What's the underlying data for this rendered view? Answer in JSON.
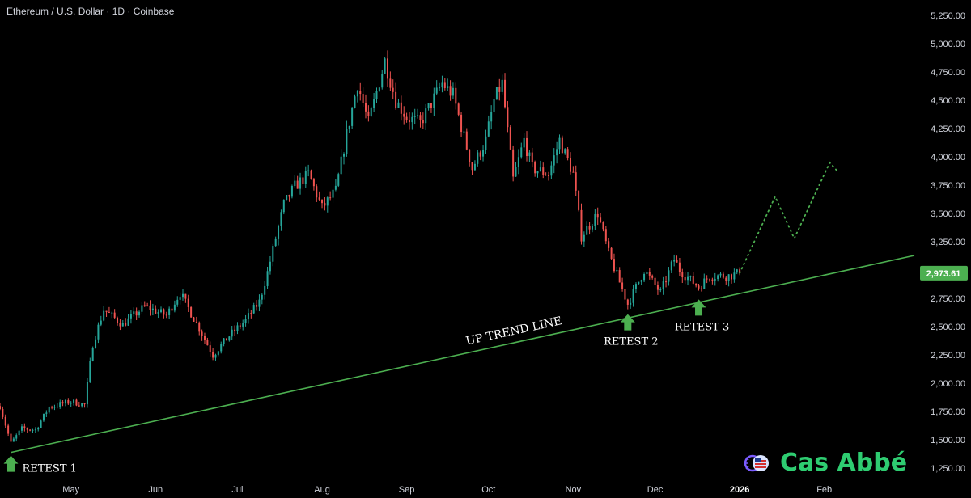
{
  "header": {
    "title": "Ethereum / U.S. Dollar · 1D · Coinbase"
  },
  "brand": {
    "name": "Cas Abbé",
    "accent": "#2ecc71"
  },
  "colors": {
    "up": "#26a69a",
    "down": "#ef5350",
    "trend": "#4caf50",
    "arrow": "#4caf50",
    "price_tag": "#4caf50"
  },
  "chart_data": {
    "type": "candlestick",
    "y_axis": {
      "ticks": [
        "1,250.00",
        "1,500.00",
        "1,750.00",
        "2,000.00",
        "2,250.00",
        "2,500.00",
        "2,750.00",
        "3,000.00",
        "3,250.00",
        "3,500.00",
        "3,750.00",
        "4,000.00",
        "4,250.00",
        "4,500.00",
        "4,750.00",
        "5,000.00",
        "5,250.00"
      ],
      "tick_values": [
        1250,
        1500,
        1750,
        2000,
        2250,
        2500,
        2750,
        3000,
        3250,
        3500,
        3750,
        4000,
        4250,
        4500,
        4750,
        5000,
        5250
      ],
      "ylim": [
        1130,
        5330
      ]
    },
    "x_axis": {
      "ticks": [
        "May",
        "Jun",
        "Jul",
        "Aug",
        "Sep",
        "Oct",
        "Nov",
        "Dec",
        "2026",
        "Feb"
      ],
      "tick_dates": [
        "2025-05-01",
        "2025-06-01",
        "2025-07-01",
        "2025-08-01",
        "2025-09-01",
        "2025-10-01",
        "2025-11-01",
        "2025-12-01",
        "2026-01-01",
        "2026-02-01"
      ],
      "bold_ticks": [
        "2026"
      ],
      "xlim": [
        "2025-04-05",
        "2026-03-06"
      ]
    },
    "current_price": {
      "value": 2973.61,
      "label": "2,973.61"
    },
    "price_path": [
      [
        "2025-04-05",
        1800
      ],
      [
        "2025-04-09",
        1470
      ],
      [
        "2025-04-13",
        1600
      ],
      [
        "2025-04-18",
        1590
      ],
      [
        "2025-04-23",
        1790
      ],
      [
        "2025-05-01",
        1840
      ],
      [
        "2025-05-06",
        1810
      ],
      [
        "2025-05-09",
        2350
      ],
      [
        "2025-05-13",
        2650
      ],
      [
        "2025-05-20",
        2520
      ],
      [
        "2025-05-28",
        2680
      ],
      [
        "2025-06-05",
        2600
      ],
      [
        "2025-06-10",
        2800
      ],
      [
        "2025-06-16",
        2530
      ],
      [
        "2025-06-22",
        2250
      ],
      [
        "2025-06-28",
        2420
      ],
      [
        "2025-07-04",
        2560
      ],
      [
        "2025-07-09",
        2720
      ],
      [
        "2025-07-12",
        2980
      ],
      [
        "2025-07-18",
        3580
      ],
      [
        "2025-07-22",
        3740
      ],
      [
        "2025-07-27",
        3850
      ],
      [
        "2025-08-01",
        3550
      ],
      [
        "2025-08-06",
        3700
      ],
      [
        "2025-08-10",
        4200
      ],
      [
        "2025-08-14",
        4650
      ],
      [
        "2025-08-18",
        4300
      ],
      [
        "2025-08-24",
        4850
      ],
      [
        "2025-08-28",
        4500
      ],
      [
        "2025-09-01",
        4350
      ],
      [
        "2025-09-06",
        4300
      ],
      [
        "2025-09-14",
        4650
      ],
      [
        "2025-09-18",
        4550
      ],
      [
        "2025-09-25",
        3900
      ],
      [
        "2025-09-30",
        4150
      ],
      [
        "2025-10-03",
        4500
      ],
      [
        "2025-10-06",
        4650
      ],
      [
        "2025-10-10",
        3800
      ],
      [
        "2025-10-14",
        4150
      ],
      [
        "2025-10-17",
        3900
      ],
      [
        "2025-10-23",
        3850
      ],
      [
        "2025-10-27",
        4150
      ],
      [
        "2025-11-01",
        3850
      ],
      [
        "2025-11-04",
        3300
      ],
      [
        "2025-11-10",
        3500
      ],
      [
        "2025-11-14",
        3150
      ],
      [
        "2025-11-21",
        2700
      ],
      [
        "2025-11-27",
        3000
      ],
      [
        "2025-12-03",
        2800
      ],
      [
        "2025-12-08",
        3100
      ],
      [
        "2025-12-10",
        3000
      ],
      [
        "2025-12-17",
        2850
      ],
      [
        "2025-12-21",
        2950
      ],
      [
        "2025-12-28",
        2950
      ],
      [
        "2026-01-01",
        2973.61
      ]
    ],
    "trend_line": {
      "label": "UP TREND LINE",
      "points": [
        [
          "2025-04-09",
          1390
        ],
        [
          "2026-03-06",
          3130
        ]
      ]
    },
    "projection": {
      "style": "dotted",
      "points": [
        [
          "2026-01-01",
          2973.61
        ],
        [
          "2026-01-14",
          3650
        ],
        [
          "2026-01-21",
          3280
        ],
        [
          "2026-02-03",
          3950
        ],
        [
          "2026-02-06",
          3870
        ]
      ]
    },
    "annotations": [
      {
        "label": "RETEST 1",
        "date": "2025-04-09",
        "price": 1390
      },
      {
        "label": "RETEST 2",
        "date": "2025-11-21",
        "price": 2640
      },
      {
        "label": "RETEST 3",
        "date": "2025-12-17",
        "price": 2770
      }
    ]
  }
}
